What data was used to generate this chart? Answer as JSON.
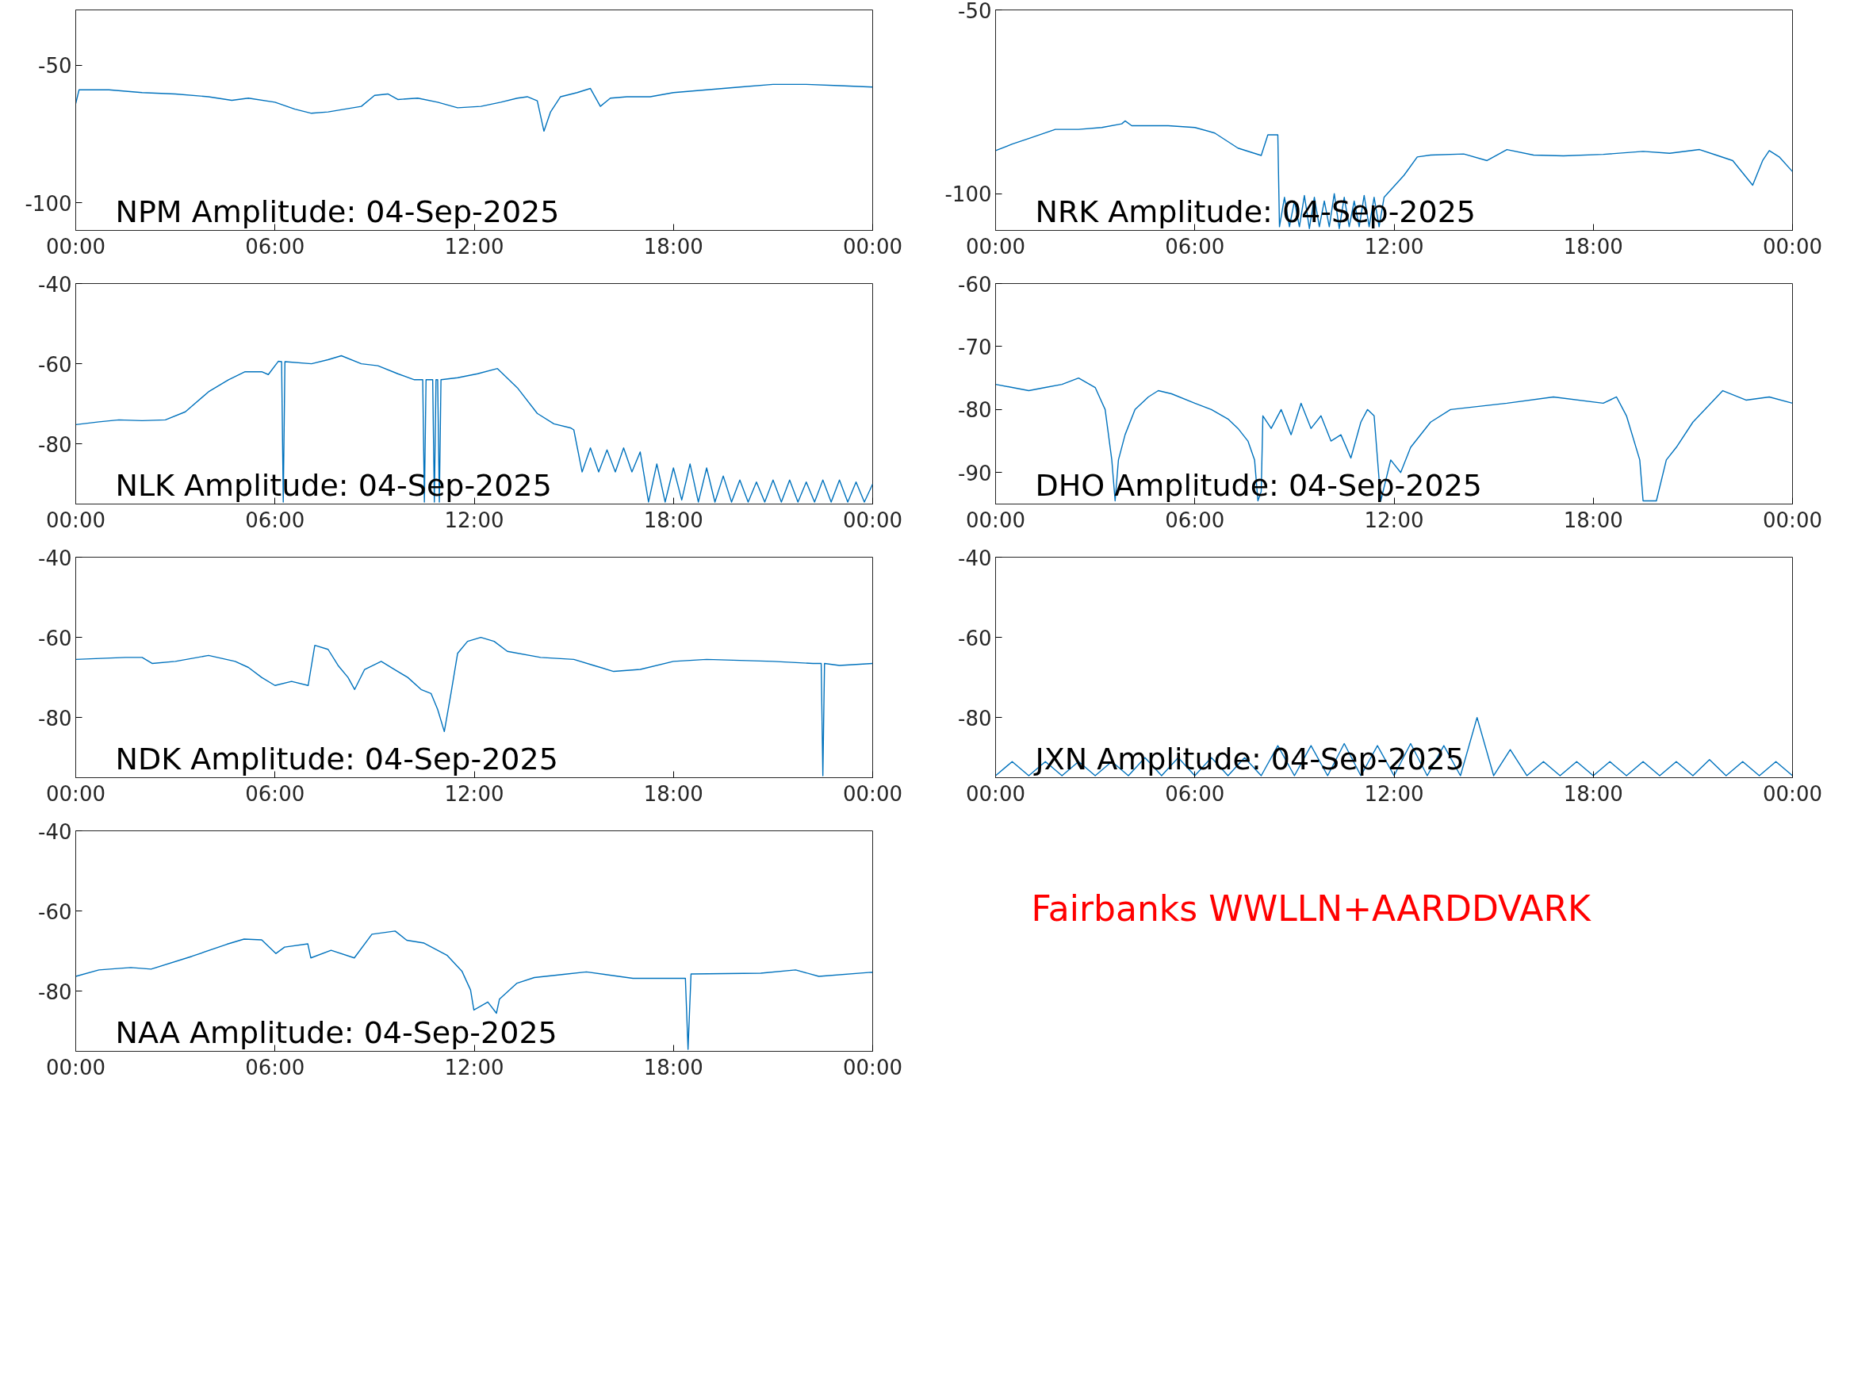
{
  "chart_data": [
    {
      "type": "line",
      "title": "NPM Amplitude: 04-Sep-2025",
      "color": "#0072bd",
      "xlim": [
        0,
        24
      ],
      "ylim": [
        -110,
        -30
      ],
      "xticks": [
        {
          "value": 0,
          "label": "00:00"
        },
        {
          "value": 6,
          "label": "06:00"
        },
        {
          "value": 12,
          "label": "12:00"
        },
        {
          "value": 18,
          "label": "18:00"
        },
        {
          "value": 24,
          "label": "00:00"
        }
      ],
      "yticks": [
        -100,
        -50
      ],
      "x": [
        0,
        0.1,
        1,
        2,
        3,
        4,
        4.7,
        5.2,
        6,
        6.6,
        7.1,
        7.6,
        8.1,
        8.6,
        9,
        9.4,
        9.7,
        10.3,
        10.9,
        11.5,
        12.2,
        12.8,
        13.3,
        13.6,
        13.9,
        14.1,
        14.3,
        14.6,
        15.1,
        15.5,
        15.8,
        16.1,
        16.6,
        17.3,
        18,
        19,
        20,
        21,
        22,
        23,
        24
      ],
      "values": [
        -64,
        -59,
        -59,
        -60,
        -60.5,
        -61.5,
        -62.8,
        -62,
        -63.5,
        -66,
        -67.5,
        -67,
        -66,
        -65,
        -61,
        -60.5,
        -62.5,
        -62,
        -63.5,
        -65.5,
        -65,
        -63.5,
        -62,
        -61.5,
        -63,
        -74,
        -67,
        -61.5,
        -60,
        -58.5,
        -65,
        -62,
        -61.5,
        -61.5,
        -60,
        -59,
        -58,
        -57,
        -57,
        -57.5,
        -58
      ]
    },
    {
      "type": "line",
      "title": "NRK Amplitude: 04-Sep-2025",
      "color": "#0072bd",
      "xlim": [
        0,
        24
      ],
      "ylim": [
        -110,
        -50
      ],
      "xticks": [
        {
          "value": 0,
          "label": "00:00"
        },
        {
          "value": 6,
          "label": "06:00"
        },
        {
          "value": 12,
          "label": "12:00"
        },
        {
          "value": 18,
          "label": "18:00"
        },
        {
          "value": 24,
          "label": "00:00"
        }
      ],
      "yticks": [
        -100,
        -50
      ],
      "x": [
        0,
        0.5,
        1,
        1.8,
        2.5,
        3.2,
        3.8,
        3.9,
        4.1,
        5.2,
        6,
        6.6,
        7.3,
        8,
        8.2,
        8.5,
        8.55,
        8.7,
        8.85,
        9.0,
        9.15,
        9.3,
        9.45,
        9.6,
        9.75,
        9.9,
        10.05,
        10.2,
        10.35,
        10.5,
        10.65,
        10.8,
        10.95,
        11.1,
        11.25,
        11.4,
        11.55,
        11.7,
        11.9,
        12.3,
        12.7,
        13.1,
        14.1,
        14.8,
        15.4,
        16.2,
        17.1,
        18.3,
        19.5,
        20.3,
        21.2,
        21.7,
        22.2,
        22.8,
        23.1,
        23.3,
        23.6,
        24
      ],
      "values": [
        -88.3,
        -86.5,
        -85,
        -82.5,
        -82.5,
        -82,
        -81,
        -80.2,
        -81.5,
        -81.5,
        -82,
        -83.5,
        -87.6,
        -89.6,
        -84,
        -84,
        -109,
        -101,
        -109,
        -102,
        -109,
        -100.5,
        -109.5,
        -101,
        -109,
        -102,
        -109,
        -100,
        -109.5,
        -101,
        -109,
        -102,
        -109,
        -100.5,
        -109,
        -101,
        -109,
        -101,
        -99,
        -95,
        -90,
        -89.5,
        -89.2,
        -91,
        -88,
        -89.5,
        -89.7,
        -89.3,
        -88.5,
        -89,
        -88,
        -89.5,
        -91,
        -97.7,
        -91,
        -88.3,
        -90,
        -94
      ]
    },
    {
      "type": "line",
      "title": "NLK Amplitude: 04-Sep-2025",
      "color": "#0072bd",
      "xlim": [
        0,
        24
      ],
      "ylim": [
        -95,
        -40
      ],
      "xticks": [
        {
          "value": 0,
          "label": "00:00"
        },
        {
          "value": 6,
          "label": "06:00"
        },
        {
          "value": 12,
          "label": "12:00"
        },
        {
          "value": 18,
          "label": "18:00"
        },
        {
          "value": 24,
          "label": "00:00"
        }
      ],
      "yticks": [
        -80,
        -60,
        -40
      ],
      "x": [
        0,
        0.7,
        1.3,
        2,
        2.7,
        3.3,
        4,
        4.6,
        5.1,
        5.6,
        5.8,
        6.1,
        6.2,
        6.25,
        6.3,
        7.1,
        7.6,
        8,
        8.6,
        9.1,
        9.7,
        10.2,
        10.45,
        10.5,
        10.55,
        10.75,
        10.8,
        10.85,
        10.9,
        10.95,
        11.0,
        11.5,
        12.1,
        12.7,
        13.3,
        13.9,
        14.4,
        14.9,
        15.0,
        15.25,
        15.5,
        15.75,
        16,
        16.25,
        16.5,
        16.75,
        17,
        17.25,
        17.5,
        17.75,
        18,
        18.25,
        18.5,
        18.75,
        19,
        19.25,
        19.5,
        19.75,
        20,
        20.25,
        20.5,
        20.75,
        21,
        21.25,
        21.5,
        21.75,
        22,
        22.25,
        22.5,
        22.75,
        23,
        23.25,
        23.5,
        23.75,
        24
      ],
      "values": [
        -75.2,
        -74.5,
        -74,
        -74.2,
        -74,
        -72,
        -67,
        -64,
        -62,
        -62,
        -62.7,
        -59.4,
        -59.5,
        -94.5,
        -59.5,
        -60,
        -59,
        -58,
        -60,
        -60.5,
        -62.5,
        -64,
        -64,
        -94.5,
        -64,
        -64,
        -94.5,
        -64,
        -64,
        -94.5,
        -64,
        -63.5,
        -62.5,
        -61.2,
        -66,
        -72.4,
        -75,
        -76,
        -76.5,
        -87,
        -81,
        -87,
        -81.5,
        -87,
        -81,
        -87,
        -82,
        -94.5,
        -85,
        -94.5,
        -86,
        -94,
        -85,
        -94.5,
        -86,
        -94.5,
        -88,
        -94.5,
        -89,
        -94.5,
        -89.5,
        -94.5,
        -89,
        -94.5,
        -89,
        -94.5,
        -89.5,
        -94.5,
        -89,
        -94.5,
        -89,
        -94.5,
        -89.5,
        -94.5,
        -90
      ]
    },
    {
      "type": "line",
      "title": "DHO Amplitude: 04-Sep-2025",
      "color": "#0072bd",
      "xlim": [
        0,
        24
      ],
      "ylim": [
        -95,
        -60
      ],
      "xticks": [
        {
          "value": 0,
          "label": "00:00"
        },
        {
          "value": 6,
          "label": "06:00"
        },
        {
          "value": 12,
          "label": "12:00"
        },
        {
          "value": 18,
          "label": "18:00"
        },
        {
          "value": 24,
          "label": "00:00"
        }
      ],
      "yticks": [
        -90,
        -80,
        -70,
        -60
      ],
      "x": [
        0,
        0.5,
        1,
        1.5,
        2,
        2.5,
        3,
        3.3,
        3.5,
        3.6,
        3.7,
        3.9,
        4.2,
        4.6,
        4.9,
        5.3,
        6,
        6.5,
        7,
        7.3,
        7.6,
        7.8,
        7.9,
        8.0,
        8.05,
        8.3,
        8.6,
        8.9,
        9.2,
        9.5,
        9.8,
        10.1,
        10.4,
        10.7,
        11.0,
        11.2,
        11.4,
        11.6,
        11.9,
        12.2,
        12.5,
        13.1,
        13.7,
        15.4,
        16.8,
        18.3,
        18.7,
        19,
        19.4,
        19.5,
        19.9,
        20.2,
        20.5,
        21,
        21.9,
        22.6,
        23.3,
        24
      ],
      "values": [
        -76,
        -76.5,
        -77,
        -76.5,
        -76,
        -75,
        -76.5,
        -80,
        -88,
        -94.5,
        -88,
        -84,
        -80,
        -78,
        -77,
        -77.5,
        -79,
        -80,
        -81.5,
        -83,
        -85,
        -88,
        -94.5,
        -93,
        -81,
        -83,
        -80,
        -84,
        -79,
        -83,
        -81,
        -85,
        -84,
        -87.7,
        -82,
        -80,
        -81,
        -94.5,
        -88,
        -90,
        -86,
        -82,
        -80,
        -79,
        -78,
        -79,
        -78,
        -81,
        -88,
        -94.5,
        -94.5,
        -88,
        -86,
        -82,
        -77,
        -78.5,
        -78,
        -79
      ]
    },
    {
      "type": "line",
      "title": "NDK Amplitude: 04-Sep-2025",
      "color": "#0072bd",
      "xlim": [
        0,
        24
      ],
      "ylim": [
        -95,
        -40
      ],
      "xticks": [
        {
          "value": 0,
          "label": "00:00"
        },
        {
          "value": 6,
          "label": "06:00"
        },
        {
          "value": 12,
          "label": "12:00"
        },
        {
          "value": 18,
          "label": "18:00"
        },
        {
          "value": 24,
          "label": "00:00"
        }
      ],
      "yticks": [
        -80,
        -60,
        -40
      ],
      "x": [
        0,
        1.5,
        2,
        2.3,
        3,
        4,
        4.8,
        5.2,
        5.6,
        6,
        6.5,
        7,
        7.2,
        7.6,
        7.9,
        8.2,
        8.4,
        8.7,
        9.2,
        9.6,
        10,
        10.4,
        10.7,
        10.9,
        11.1,
        11.3,
        11.5,
        11.8,
        12.2,
        12.6,
        13,
        14,
        15,
        15.6,
        16.2,
        17,
        18,
        19,
        21,
        22.2,
        22.45,
        22.5,
        22.55,
        23,
        24
      ],
      "values": [
        -65.5,
        -65,
        -65,
        -66.5,
        -66,
        -64.5,
        -66,
        -67.5,
        -70,
        -72,
        -71,
        -72,
        -62,
        -63,
        -67,
        -70,
        -73,
        -68,
        -66,
        -68,
        -70,
        -73,
        -74,
        -78,
        -83.5,
        -74,
        -64,
        -61,
        -60,
        -61,
        -63.5,
        -65,
        -65.5,
        -67,
        -68.5,
        -68,
        -66,
        -65.5,
        -66,
        -66.5,
        -66.5,
        -94.5,
        -66.5,
        -67,
        -66.5
      ]
    },
    {
      "type": "line",
      "title": "JXN Amplitude: 04-Sep-2025",
      "color": "#0072bd",
      "xlim": [
        0,
        24
      ],
      "ylim": [
        -95,
        -40
      ],
      "xticks": [
        {
          "value": 0,
          "label": "00:00"
        },
        {
          "value": 6,
          "label": "06:00"
        },
        {
          "value": 12,
          "label": "12:00"
        },
        {
          "value": 18,
          "label": "18:00"
        },
        {
          "value": 24,
          "label": "00:00"
        }
      ],
      "yticks": [
        -80,
        -60,
        -40
      ],
      "x": [
        0,
        0.5,
        1,
        1.5,
        2,
        2.5,
        3,
        3.5,
        4,
        4.5,
        5,
        5.5,
        6,
        6.5,
        7,
        7.5,
        8,
        8.5,
        9,
        9.5,
        10,
        10.5,
        11,
        11.5,
        12,
        12.5,
        13,
        13.5,
        14,
        14.5,
        15,
        15.5,
        16,
        16.5,
        17,
        17.5,
        18,
        18.5,
        19,
        19.5,
        20,
        20.5,
        21,
        21.5,
        22,
        22.5,
        23,
        23.5,
        24
      ],
      "values": [
        -94.5,
        -91,
        -94.5,
        -91,
        -94.5,
        -91,
        -94.5,
        -91,
        -94.5,
        -90,
        -94.5,
        -90,
        -94.5,
        -90,
        -94.5,
        -90,
        -94.5,
        -87,
        -94.5,
        -87,
        -94.5,
        -86.5,
        -94.5,
        -87,
        -94.5,
        -86.5,
        -94.5,
        -87,
        -94.5,
        -80,
        -94.5,
        -88,
        -94.5,
        -91,
        -94.5,
        -91,
        -94.5,
        -91,
        -94.5,
        -91,
        -94.5,
        -91,
        -94.5,
        -90.5,
        -94.5,
        -91,
        -94.5,
        -91,
        -94.5
      ]
    },
    {
      "type": "line",
      "title": "NAA Amplitude: 04-Sep-2025",
      "color": "#0072bd",
      "xlim": [
        0,
        24
      ],
      "ylim": [
        -95,
        -40
      ],
      "xticks": [
        {
          "value": 0,
          "label": "00:00"
        },
        {
          "value": 6,
          "label": "06:00"
        },
        {
          "value": 12,
          "label": "12:00"
        },
        {
          "value": 18,
          "label": "18:00"
        },
        {
          "value": 24,
          "label": "00:00"
        }
      ],
      "yticks": [
        -80,
        -60,
        -40
      ],
      "x": [
        0,
        0.7,
        1.66,
        2.27,
        3.5,
        4.55,
        5.07,
        5.6,
        6.03,
        6.29,
        6.99,
        7.08,
        7.69,
        8.39,
        8.92,
        9.62,
        9.97,
        10.49,
        11.19,
        11.63,
        11.89,
        11.99,
        12.41,
        12.67,
        12.76,
        13.29,
        13.81,
        14.69,
        15.38,
        16.78,
        18.36,
        18.44,
        18.53,
        20.63,
        21.68,
        22.38,
        23.95,
        24
      ],
      "values": [
        -76.3,
        -74.7,
        -74.1,
        -74.5,
        -71.3,
        -68.3,
        -67,
        -67.2,
        -70.6,
        -69,
        -68.2,
        -71.7,
        -69.8,
        -71.7,
        -65.8,
        -65,
        -67.3,
        -68,
        -71.1,
        -75,
        -79.7,
        -84.7,
        -82.7,
        -85.5,
        -82,
        -78,
        -76.6,
        -75.8,
        -75.2,
        -76.8,
        -76.8,
        -94.5,
        -75.7,
        -75.5,
        -74.7,
        -76.3,
        -75.3,
        -75.3
      ]
    },
    {
      "type": "other",
      "annotations": [
        "Fairbanks WWLLN+AARDDVARK"
      ],
      "color": "#ff0000"
    }
  ]
}
